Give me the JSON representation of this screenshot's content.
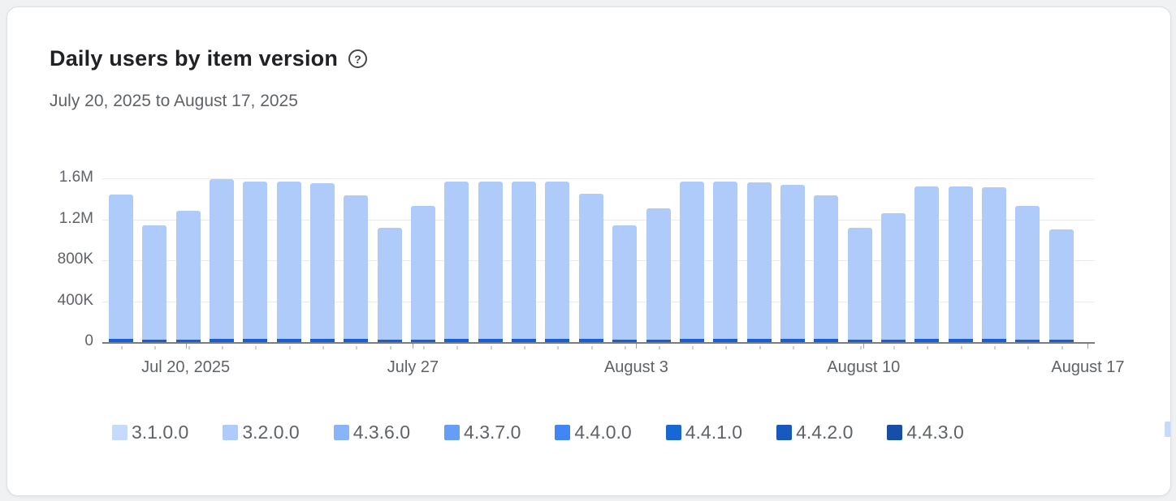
{
  "header": {
    "title": "Daily users by item version",
    "date_range": "July 20, 2025 to August 17, 2025",
    "help_icon": "?"
  },
  "chart_data": {
    "type": "bar",
    "stacked": true,
    "title": "Daily users by item version",
    "date_range": "July 20, 2025 to August 17, 2025",
    "ylim": [
      0,
      1600000
    ],
    "ymax": 1600000,
    "grid": true,
    "legend_position": "bottom",
    "y_ticks": [
      {
        "label": "1.6M",
        "value": 1600000
      },
      {
        "label": "1.2M",
        "value": 1200000
      },
      {
        "label": "800K",
        "value": 800000
      },
      {
        "label": "400K",
        "value": 400000
      },
      {
        "label": "0",
        "value": 0
      }
    ],
    "x_ticks": [
      {
        "label": "Jul 20, 2025",
        "pos": 0.084
      },
      {
        "label": "July 27",
        "pos": 0.313
      },
      {
        "label": "August 3",
        "pos": 0.538
      },
      {
        "label": "August 10",
        "pos": 0.767
      },
      {
        "label": "August 17",
        "pos": 0.993
      }
    ],
    "bar_colors": {
      "body": "#aecbfa",
      "base": "#1a5fd0"
    },
    "days": [
      {
        "date": "Jul 20",
        "total": 1440000,
        "base": 29000
      },
      {
        "date": "Jul 21",
        "total": 1140000,
        "base": 23000
      },
      {
        "date": "Jul 22",
        "total": 1280000,
        "base": 26000
      },
      {
        "date": "Jul 23",
        "total": 1590000,
        "base": 32000
      },
      {
        "date": "Jul 24",
        "total": 1570000,
        "base": 31000
      },
      {
        "date": "Jul 25",
        "total": 1570000,
        "base": 31000
      },
      {
        "date": "Jul 26",
        "total": 1550000,
        "base": 31000
      },
      {
        "date": "Jul 27",
        "total": 1430000,
        "base": 29000
      },
      {
        "date": "Jul 28",
        "total": 1120000,
        "base": 22000
      },
      {
        "date": "Jul 29",
        "total": 1330000,
        "base": 27000
      },
      {
        "date": "Jul 30",
        "total": 1570000,
        "base": 31000
      },
      {
        "date": "Jul 31",
        "total": 1570000,
        "base": 31000
      },
      {
        "date": "Aug 1",
        "total": 1570000,
        "base": 31000
      },
      {
        "date": "Aug 2",
        "total": 1570000,
        "base": 31000
      },
      {
        "date": "Aug 3",
        "total": 1450000,
        "base": 29000
      },
      {
        "date": "Aug 4",
        "total": 1140000,
        "base": 23000
      },
      {
        "date": "Aug 5",
        "total": 1310000,
        "base": 26000
      },
      {
        "date": "Aug 6",
        "total": 1570000,
        "base": 31000
      },
      {
        "date": "Aug 7",
        "total": 1570000,
        "base": 31000
      },
      {
        "date": "Aug 8",
        "total": 1560000,
        "base": 31000
      },
      {
        "date": "Aug 9",
        "total": 1540000,
        "base": 31000
      },
      {
        "date": "Aug 10",
        "total": 1430000,
        "base": 29000
      },
      {
        "date": "Aug 11",
        "total": 1120000,
        "base": 22000
      },
      {
        "date": "Aug 12",
        "total": 1260000,
        "base": 25000
      },
      {
        "date": "Aug 13",
        "total": 1520000,
        "base": 30000
      },
      {
        "date": "Aug 14",
        "total": 1520000,
        "base": 30000
      },
      {
        "date": "Aug 15",
        "total": 1510000,
        "base": 30000
      },
      {
        "date": "Aug 16",
        "total": 1330000,
        "base": 27000
      },
      {
        "date": "Aug 17",
        "total": 1100000,
        "base": 22000
      }
    ],
    "legend": [
      {
        "label": "3.1.0.0",
        "color": "#c6dafc"
      },
      {
        "label": "3.2.0.0",
        "color": "#aecbfa"
      },
      {
        "label": "4.3.6.0",
        "color": "#8ab4f8"
      },
      {
        "label": "4.3.7.0",
        "color": "#669df6"
      },
      {
        "label": "4.4.0.0",
        "color": "#4285f4"
      },
      {
        "label": "4.4.1.0",
        "color": "#1967d2"
      },
      {
        "label": "4.4.2.0",
        "color": "#185abc"
      },
      {
        "label": "4.4.3.0",
        "color": "#174ea6"
      },
      {
        "label": "",
        "color": "#c6dafc",
        "partial": true
      }
    ]
  }
}
